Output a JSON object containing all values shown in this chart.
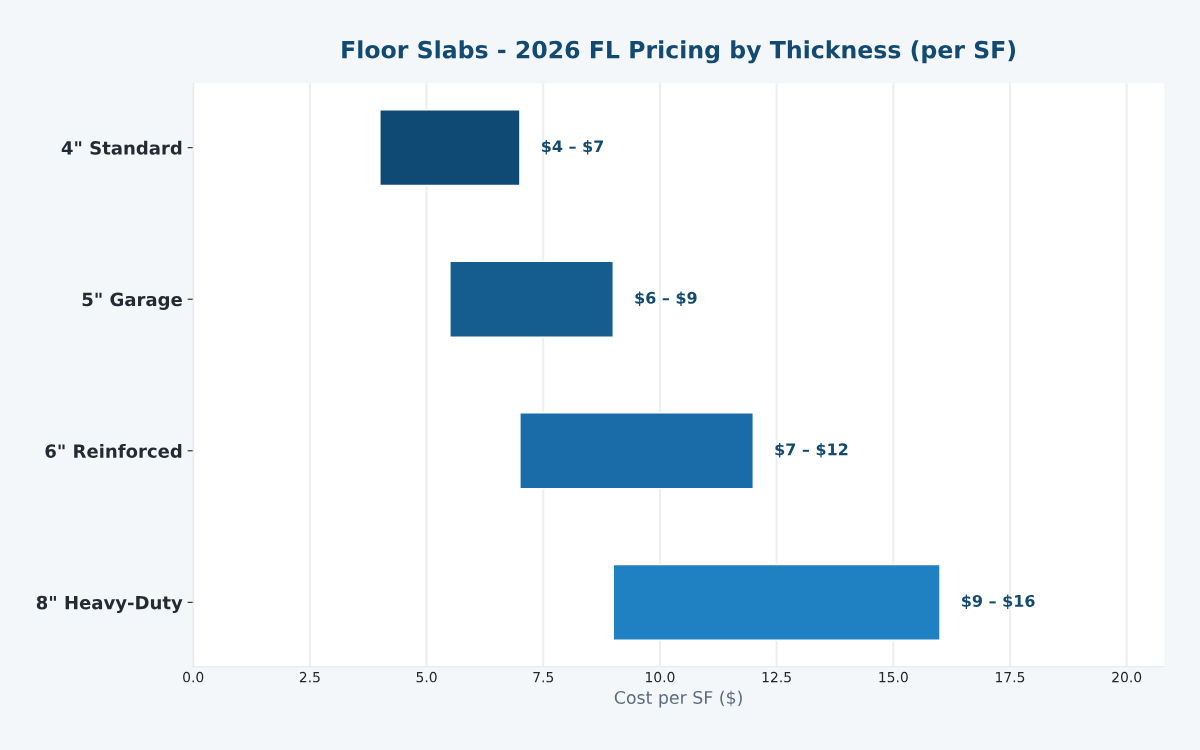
{
  "chart_data": {
    "type": "bar",
    "orientation": "horizontal",
    "title": "Floor Slabs - 2026 FL Pricing by Thickness (per SF)",
    "xlabel": "Cost per SF ($)",
    "categories": [
      "4\" Standard",
      "5\" Garage",
      "6\" Reinforced",
      "8\" Heavy-Duty"
    ],
    "base": [
      4,
      5.5,
      7,
      9
    ],
    "values": [
      3,
      3.5,
      5,
      7
    ],
    "colors": [
      "#0f4a74",
      "#155c8f",
      "#1a6ca9",
      "#1f80c2"
    ],
    "annotations": [
      {
        "text": "$4 – $7",
        "x": 7,
        "y": "4\" Standard"
      },
      {
        "text": "$6 – $9",
        "x": 9,
        "y": "5\" Garage"
      },
      {
        "text": "$7 – $12",
        "x": 12,
        "y": "6\" Reinforced"
      },
      {
        "text": "$9 – $16",
        "x": 16,
        "y": "8\" Heavy-Duty"
      }
    ],
    "xlim": [
      0,
      20.8
    ],
    "xticks": [
      {
        "value": 0,
        "label": "0.0"
      },
      2.5,
      {
        "value": 5,
        "label": "5.0"
      },
      7.5,
      {
        "value": 10,
        "label": "10.0"
      },
      12.5,
      {
        "value": 15,
        "label": "15.0"
      },
      17.5,
      {
        "value": 20,
        "label": "20.0"
      }
    ],
    "grid": "x"
  }
}
